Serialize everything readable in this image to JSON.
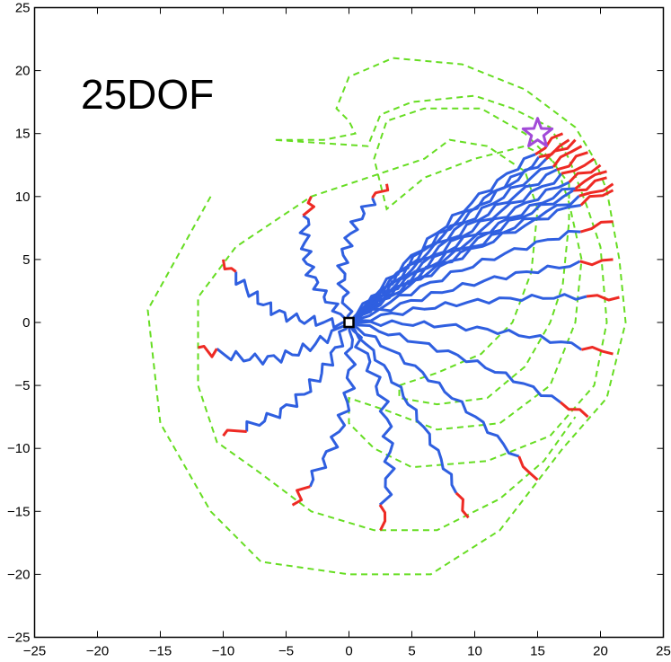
{
  "chart_data": {
    "type": "line",
    "title": "25DOF",
    "xlabel": "",
    "ylabel": "",
    "xlim": [
      -25,
      25
    ],
    "ylim": [
      -25,
      25
    ],
    "xticks": [
      -25,
      -20,
      -15,
      -10,
      -5,
      0,
      5,
      10,
      15,
      20,
      25
    ],
    "yticks": [
      -25,
      -20,
      -15,
      -10,
      -5,
      0,
      5,
      10,
      15,
      20,
      25
    ],
    "grid": false,
    "colors": {
      "trajectory": "#2f5fe0",
      "trajectory_tip": "#ee2a24",
      "boundary": "#66dd22",
      "goal": "#a24ad8",
      "base": "#000000"
    },
    "base": {
      "x": 0,
      "y": 0
    },
    "goal": {
      "x": 15,
      "y": 15
    },
    "boundary": [
      [
        -11,
        10
      ],
      [
        -16,
        1
      ],
      [
        -15,
        -8
      ],
      [
        -11,
        -15
      ],
      [
        -7,
        -19
      ],
      [
        0,
        -20
      ],
      [
        6.5,
        -20
      ],
      [
        12,
        -16.5
      ],
      [
        17,
        -10
      ],
      [
        20.5,
        -6
      ],
      [
        22,
        0
      ],
      [
        21.5,
        5
      ],
      [
        20.5,
        10.5
      ],
      [
        19.5,
        13
      ],
      [
        18,
        15.5
      ],
      [
        14,
        18.5
      ],
      [
        9,
        20.5
      ],
      [
        3.5,
        21
      ],
      [
        0,
        19.5
      ],
      [
        -1,
        17
      ],
      [
        0,
        16
      ],
      [
        0.5,
        15
      ],
      [
        -2,
        14.5
      ],
      [
        -6,
        14.5
      ],
      [
        1.5,
        14
      ],
      [
        2.5,
        16.5
      ],
      [
        5,
        17.5
      ],
      [
        10,
        18
      ],
      [
        13,
        17
      ],
      [
        16,
        15.5
      ],
      [
        17.5,
        13
      ],
      [
        19,
        9
      ],
      [
        20,
        6
      ],
      [
        20.5,
        0
      ],
      [
        19.5,
        -5
      ],
      [
        16,
        -9
      ],
      [
        11,
        -11
      ],
      [
        5,
        -11.5
      ],
      [
        2,
        -10
      ],
      [
        0,
        -8
      ],
      [
        0,
        -6
      ],
      [
        3,
        -7
      ],
      [
        7,
        -8.5
      ],
      [
        12,
        -8
      ],
      [
        16,
        -5
      ],
      [
        18,
        0
      ],
      [
        18.5,
        5
      ],
      [
        17.5,
        9.5
      ],
      [
        16.5,
        12.5
      ],
      [
        14,
        15
      ],
      [
        10.5,
        17
      ],
      [
        6,
        17
      ],
      [
        3,
        16
      ],
      [
        2,
        13
      ],
      [
        2.5,
        11
      ],
      [
        3,
        9
      ],
      [
        6,
        11.5
      ],
      [
        10,
        13
      ],
      [
        14,
        14
      ],
      [
        16,
        13
      ],
      [
        17.5,
        11
      ],
      [
        17.5,
        8
      ],
      [
        17,
        3
      ],
      [
        16,
        0
      ],
      [
        14,
        -3.5
      ],
      [
        11,
        -6
      ],
      [
        7,
        -6.5
      ],
      [
        4,
        -6
      ],
      [
        4,
        -5
      ],
      [
        7,
        -4
      ],
      [
        10.5,
        -2.5
      ],
      [
        13,
        0
      ],
      [
        14.5,
        4
      ],
      [
        15,
        9
      ],
      [
        14,
        12
      ],
      [
        11,
        14
      ],
      [
        8,
        14.5
      ],
      [
        6,
        13
      ],
      [
        -3,
        10
      ],
      [
        -9,
        6
      ],
      [
        -12,
        2
      ],
      [
        -12,
        -5
      ],
      [
        -10.5,
        -9.5
      ],
      [
        -7,
        -12
      ],
      [
        -3,
        -15
      ],
      [
        2,
        -16.5
      ],
      [
        7,
        -16.5
      ],
      [
        12,
        -14
      ],
      [
        15.5,
        -11
      ],
      [
        18,
        -7.5
      ]
    ],
    "arm_endpoints": [
      [
        3,
        11
      ],
      [
        -3,
        10
      ],
      [
        -10,
        5
      ],
      [
        -12,
        -2
      ],
      [
        -10,
        -9
      ],
      [
        -4.5,
        -14.5
      ],
      [
        2.5,
        -16.5
      ],
      [
        9.5,
        -15.5
      ],
      [
        15,
        -12.5
      ],
      [
        19,
        -7.5
      ],
      [
        21,
        -2.5
      ],
      [
        21.5,
        2
      ],
      [
        21,
        5
      ],
      [
        21,
        8
      ],
      [
        21,
        10.5
      ],
      [
        21,
        11
      ],
      [
        20.5,
        11.5
      ],
      [
        20.5,
        12
      ],
      [
        20,
        12.5
      ],
      [
        19.5,
        13
      ],
      [
        19,
        13.5
      ],
      [
        18.5,
        14
      ],
      [
        18,
        14.5
      ],
      [
        17.5,
        14.5
      ],
      [
        17,
        15
      ]
    ],
    "arm_segments": 25,
    "tip_fraction": 0.1
  }
}
